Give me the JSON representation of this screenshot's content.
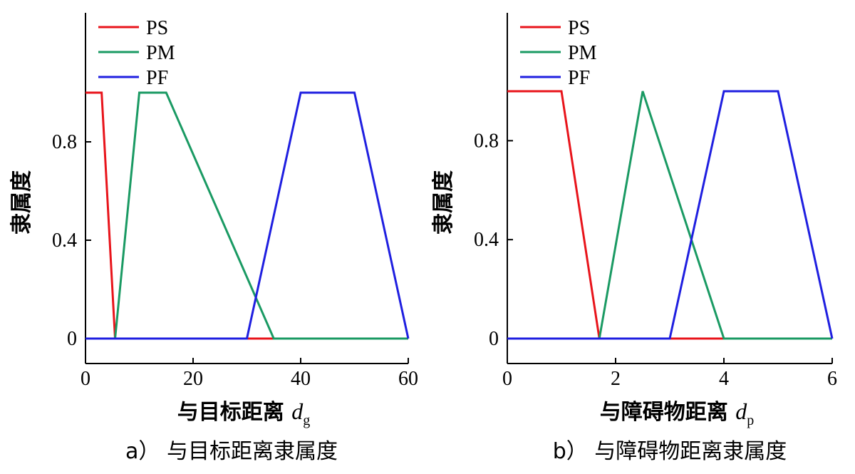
{
  "chart_data": [
    {
      "type": "line",
      "caption": "a） 与目标距离隶属度",
      "xlabel": "与目标距离",
      "xvar": "d",
      "xsub": "g",
      "ylabel": "隶属度",
      "xlim": [
        0,
        60
      ],
      "ylim": [
        0,
        1
      ],
      "xticks": [
        0,
        20,
        40,
        60
      ],
      "yticks": [
        0,
        0.4,
        0.8
      ],
      "ytick_labels": [
        "0",
        "0.4",
        "0.8"
      ],
      "legend_position": "top-left",
      "series": [
        {
          "name": "PS",
          "color": "#e8141b",
          "x": [
            0,
            3,
            5.5,
            35
          ],
          "y": [
            1,
            1,
            0,
            0
          ]
        },
        {
          "name": "PM",
          "color": "#1a9a63",
          "x": [
            0,
            5.5,
            10,
            15,
            35,
            60
          ],
          "y": [
            0,
            0,
            1,
            1,
            0,
            0
          ]
        },
        {
          "name": "PF",
          "color": "#1f1fe0",
          "x": [
            0,
            30,
            40,
            50,
            60
          ],
          "y": [
            0,
            0,
            1,
            1,
            0
          ]
        }
      ]
    },
    {
      "type": "line",
      "caption": "b） 与障碍物距离隶属度",
      "xlabel": "与障碍物距离",
      "xvar": "d",
      "xsub": "p",
      "ylabel": "隶属度",
      "xlim": [
        0,
        6
      ],
      "ylim": [
        0,
        1
      ],
      "xticks": [
        0,
        2,
        4,
        6
      ],
      "yticks": [
        0,
        0.4,
        0.8
      ],
      "ytick_labels": [
        "0",
        "0.4",
        "0.8"
      ],
      "legend_position": "top-left",
      "series": [
        {
          "name": "PS",
          "color": "#e8141b",
          "x": [
            0,
            1,
            1.7,
            4
          ],
          "y": [
            1,
            1,
            0,
            0
          ]
        },
        {
          "name": "PM",
          "color": "#1a9a63",
          "x": [
            0,
            1.7,
            2.5,
            4,
            6
          ],
          "y": [
            0,
            0,
            1,
            0,
            0
          ]
        },
        {
          "name": "PF",
          "color": "#1f1fe0",
          "x": [
            0,
            3,
            4,
            5,
            6
          ],
          "y": [
            0,
            0,
            1,
            1,
            0
          ]
        }
      ]
    }
  ]
}
